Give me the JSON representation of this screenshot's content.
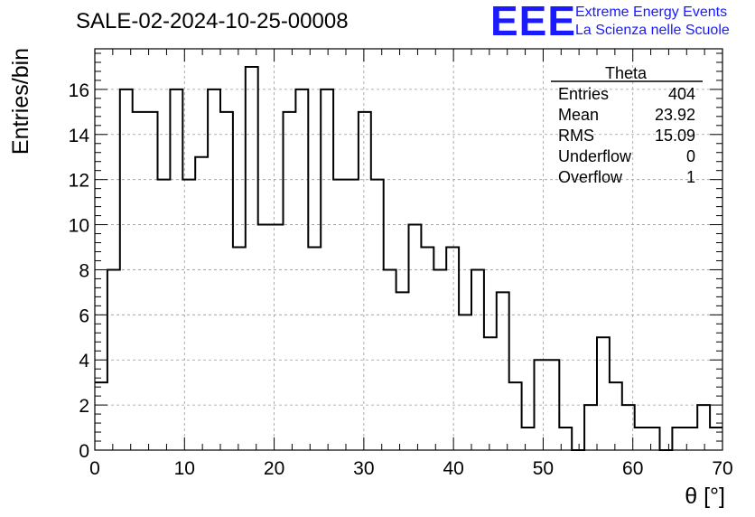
{
  "title": "SALE-02-2024-10-25-00008",
  "logo": {
    "mark": "EEE",
    "line1": "Extreme Energy Events",
    "line2": "La Scienza nelle Scuole",
    "color": "#1a1aff"
  },
  "stats": {
    "name": "Theta",
    "rows": [
      {
        "label": "Entries",
        "value": "404"
      },
      {
        "label": "Mean",
        "value": "23.92"
      },
      {
        "label": "RMS",
        "value": "15.09"
      },
      {
        "label": "Underflow",
        "value": "0"
      },
      {
        "label": "Overflow",
        "value": "1"
      }
    ]
  },
  "chart_data": {
    "type": "bar",
    "style": "step-histogram",
    "title": "SALE-02-2024-10-25-00008",
    "xlabel": "θ [°]",
    "ylabel": "Entries/bin",
    "xlim": [
      0,
      70
    ],
    "ylim": [
      0,
      17.8
    ],
    "grid": true,
    "bin_width": 1.4,
    "bin_edges_start": 0,
    "values": [
      3,
      8,
      16,
      15,
      15,
      12,
      16,
      12,
      13,
      16,
      15,
      9,
      17,
      10,
      10,
      15,
      16,
      9,
      16,
      12,
      12,
      15,
      12,
      8,
      7,
      10,
      9,
      8,
      9,
      6,
      8,
      5,
      7,
      3,
      1,
      4,
      4,
      1,
      0,
      2,
      5,
      3,
      2,
      1,
      1,
      0,
      1,
      1,
      2,
      1
    ],
    "x_ticks": [
      0,
      10,
      20,
      30,
      40,
      50,
      60,
      70
    ],
    "y_ticks": [
      0,
      2,
      4,
      6,
      8,
      10,
      12,
      14,
      16
    ]
  }
}
